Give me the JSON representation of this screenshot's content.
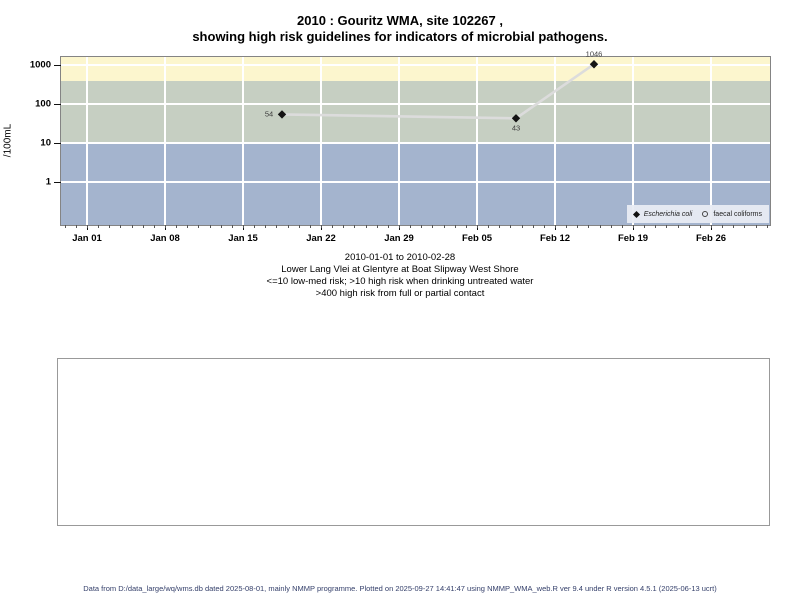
{
  "title": {
    "line1": "2010 : Gouritz WMA, site 102267 ,",
    "line2": "showing high risk guidelines for indicators of microbial pathogens."
  },
  "chart_data": {
    "type": "line",
    "title": "2010 : Gouritz WMA, site 102267 , showing high risk guidelines for indicators of microbial pathogens.",
    "xlabel": "",
    "ylabel": "/100mL",
    "y_scale": "log10",
    "ylim": [
      0.08,
      1600
    ],
    "grid": true,
    "x_range": {
      "start": "2010-01-01",
      "end": "2010-02-28"
    },
    "y_ticks": [
      {
        "label": "1000",
        "value": 1000
      },
      {
        "label": "100",
        "value": 100
      },
      {
        "label": "10",
        "value": 10
      },
      {
        "label": "1",
        "value": 1
      }
    ],
    "x_ticks": [
      {
        "label": "Jan 01",
        "date": "2010-01-01"
      },
      {
        "label": "Jan 08",
        "date": "2010-01-08"
      },
      {
        "label": "Jan 15",
        "date": "2010-01-15"
      },
      {
        "label": "Jan 22",
        "date": "2010-01-22"
      },
      {
        "label": "Jan 29",
        "date": "2010-01-29"
      },
      {
        "label": "Feb 05",
        "date": "2010-02-05"
      },
      {
        "label": "Feb 12",
        "date": "2010-02-12"
      },
      {
        "label": "Feb 19",
        "date": "2010-02-19"
      },
      {
        "label": "Feb 26",
        "date": "2010-02-26"
      }
    ],
    "bands": [
      {
        "name": "high-risk-full-or-partial-contact",
        "from": 400,
        "to": null,
        "color": "#FCF6CE"
      },
      {
        "name": "high-risk-drinking-untreated",
        "from": 10,
        "to": 400,
        "color": "#C6CFC2"
      },
      {
        "name": "low-med-risk",
        "from": null,
        "to": 10,
        "color": "#A4B4CE"
      }
    ],
    "series": [
      {
        "name": "Escherichia coli",
        "marker": "filled-diamond",
        "line_color": "#dcdcdc",
        "marker_color": "#141414",
        "points": [
          {
            "date": "2010-01-18",
            "value": 54,
            "label": "54",
            "label_pos": "left"
          },
          {
            "date": "2010-02-08",
            "value": 43,
            "label": "43",
            "label_pos": "below"
          },
          {
            "date": "2010-02-15",
            "value": 1046,
            "label": "1046",
            "label_pos": "above"
          }
        ]
      },
      {
        "name": "faecal coliforms",
        "marker": "open-circle",
        "points": []
      }
    ],
    "legend": {
      "position": "bottom-right",
      "items": [
        {
          "label": "Escherichia coli",
          "marker": "filled-diamond",
          "italic": true
        },
        {
          "label": "faecal coliforms",
          "marker": "open-circle",
          "italic": false
        }
      ]
    }
  },
  "subtitle": {
    "line1": "2010-01-01 to 2010-02-28",
    "line2": "Lower Lang Vlei at Glentyre at Boat Slipway West Shore",
    "line3": "<=10 low-med risk; >10 high risk when drinking untreated water",
    "line4": ">400 high risk from full or partial contact"
  },
  "footer": {
    "text": "Data from D:/data_large/wq/wms.db dated 2025-08-01, mainly NMMP programme. Plotted on 2025-09-27 14:41:47 using NMMP_WMA_web.R ver 9.4 under R version 4.5.1 (2025-06-13 ucrt)"
  }
}
